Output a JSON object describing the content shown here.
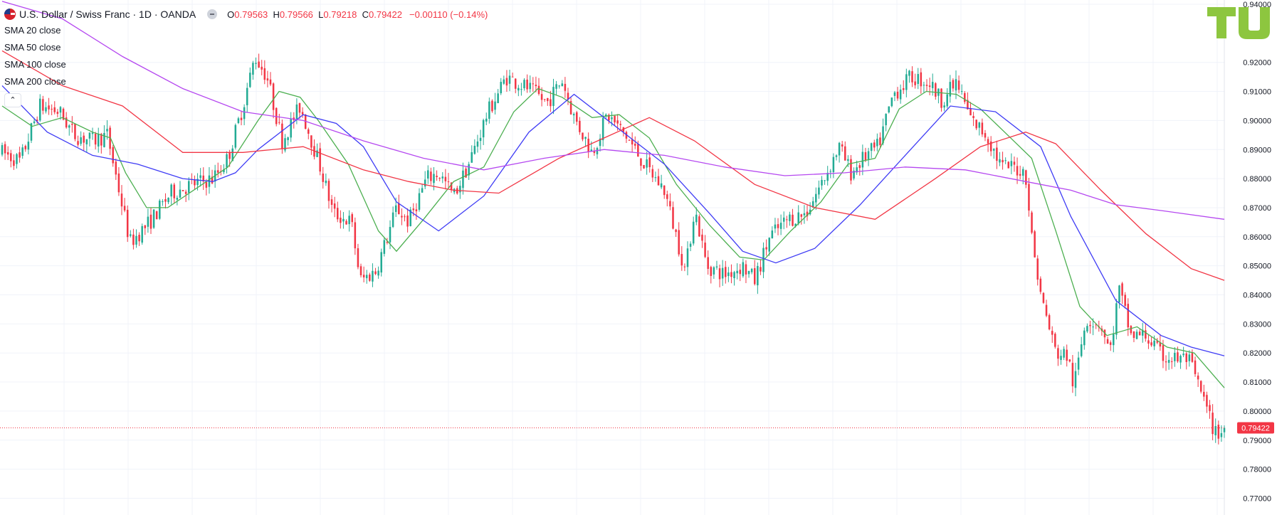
{
  "header": {
    "symbol": "U.S. Dollar / Swiss Franc · 1D · OANDA",
    "o_label": "O",
    "o_value": "0.79563",
    "h_label": "H",
    "h_value": "0.79566",
    "l_label": "L",
    "l_value": "0.79218",
    "c_label": "C",
    "c_value": "0.79422",
    "change": "−0.00110 (−0.14%)"
  },
  "indicators": [
    "SMA 20 close",
    "SMA 50 close",
    "SMA 100 close",
    "SMA 200 close"
  ],
  "collapse_icon": "chevron-up-icon",
  "logo": "TU",
  "colors": {
    "up": "#22ab94",
    "down": "#f23645",
    "sma20": "#4caf50",
    "sma50": "#3f3cf5",
    "sma100": "#f23645",
    "sma200": "#b548f0",
    "price_line": "#f23645",
    "grid": "#f0f3fa",
    "logo": "#8dc63f"
  },
  "chart_data": {
    "type": "line",
    "title": "U.S. Dollar / Swiss Franc · 1D · OANDA",
    "ylim": [
      0.765,
      0.942
    ],
    "y_ticks": [
      "0.94000",
      "0.92000",
      "0.91000",
      "0.90000",
      "0.89000",
      "0.88000",
      "0.87000",
      "0.86000",
      "0.85000",
      "0.84000",
      "0.83000",
      "0.82000",
      "0.81000",
      "0.80000",
      "0.79000",
      "0.78000",
      "0.77000"
    ],
    "last_price": "0.79422",
    "grid": true,
    "legend": "top-left",
    "bars": 420,
    "price_path": [
      [
        0,
        0.889
      ],
      [
        12,
        0.886
      ],
      [
        25,
        0.905
      ],
      [
        38,
        0.903
      ],
      [
        48,
        0.895
      ],
      [
        60,
        0.893
      ],
      [
        70,
        0.895
      ],
      [
        76,
        0.88
      ],
      [
        85,
        0.858
      ],
      [
        98,
        0.865
      ],
      [
        112,
        0.875
      ],
      [
        126,
        0.878
      ],
      [
        140,
        0.88
      ],
      [
        150,
        0.887
      ],
      [
        160,
        0.905
      ],
      [
        168,
        0.922
      ],
      [
        176,
        0.915
      ],
      [
        186,
        0.893
      ],
      [
        198,
        0.905
      ],
      [
        212,
        0.883
      ],
      [
        220,
        0.868
      ],
      [
        232,
        0.865
      ],
      [
        238,
        0.845
      ],
      [
        248,
        0.848
      ],
      [
        256,
        0.86
      ],
      [
        262,
        0.87
      ],
      [
        270,
        0.865
      ],
      [
        282,
        0.88
      ],
      [
        290,
        0.882
      ],
      [
        300,
        0.874
      ],
      [
        310,
        0.885
      ],
      [
        322,
        0.902
      ],
      [
        335,
        0.915
      ],
      [
        350,
        0.911
      ],
      [
        362,
        0.906
      ],
      [
        372,
        0.914
      ],
      [
        380,
        0.901
      ],
      [
        392,
        0.889
      ],
      [
        402,
        0.902
      ],
      [
        414,
        0.895
      ],
      [
        428,
        0.884
      ],
      [
        440,
        0.876
      ],
      [
        448,
        0.86
      ],
      [
        454,
        0.848
      ],
      [
        460,
        0.87
      ],
      [
        468,
        0.85
      ],
      [
        480,
        0.847
      ],
      [
        492,
        0.85
      ],
      [
        500,
        0.845
      ],
      [
        510,
        0.86
      ],
      [
        522,
        0.866
      ],
      [
        534,
        0.868
      ],
      [
        546,
        0.88
      ],
      [
        556,
        0.891
      ],
      [
        564,
        0.882
      ],
      [
        574,
        0.888
      ],
      [
        582,
        0.891
      ],
      [
        592,
        0.909
      ],
      [
        604,
        0.915
      ],
      [
        616,
        0.913
      ],
      [
        624,
        0.907
      ],
      [
        634,
        0.913
      ],
      [
        644,
        0.9
      ],
      [
        654,
        0.895
      ],
      [
        664,
        0.884
      ],
      [
        672,
        0.884
      ],
      [
        680,
        0.882
      ],
      [
        684,
        0.86
      ],
      [
        690,
        0.84
      ],
      [
        700,
        0.82
      ],
      [
        708,
        0.819
      ],
      [
        712,
        0.808
      ],
      [
        720,
        0.832
      ],
      [
        730,
        0.83
      ],
      [
        736,
        0.82
      ],
      [
        742,
        0.842
      ],
      [
        750,
        0.826
      ],
      [
        760,
        0.826
      ],
      [
        770,
        0.819
      ],
      [
        778,
        0.818
      ],
      [
        788,
        0.818
      ],
      [
        796,
        0.807
      ],
      [
        806,
        0.792
      ],
      [
        812,
        0.794
      ]
    ],
    "series": [
      {
        "name": "SMA 20 close",
        "points": [
          [
            0,
            0.905
          ],
          [
            20,
            0.898
          ],
          [
            40,
            0.901
          ],
          [
            60,
            0.896
          ],
          [
            72,
            0.894
          ],
          [
            82,
            0.882
          ],
          [
            96,
            0.87
          ],
          [
            110,
            0.87
          ],
          [
            130,
            0.877
          ],
          [
            150,
            0.884
          ],
          [
            170,
            0.9
          ],
          [
            184,
            0.91
          ],
          [
            198,
            0.908
          ],
          [
            210,
            0.9
          ],
          [
            230,
            0.885
          ],
          [
            250,
            0.862
          ],
          [
            262,
            0.855
          ],
          [
            280,
            0.866
          ],
          [
            300,
            0.879
          ],
          [
            320,
            0.884
          ],
          [
            340,
            0.903
          ],
          [
            356,
            0.911
          ],
          [
            372,
            0.908
          ],
          [
            392,
            0.901
          ],
          [
            410,
            0.902
          ],
          [
            430,
            0.894
          ],
          [
            448,
            0.878
          ],
          [
            470,
            0.864
          ],
          [
            490,
            0.853
          ],
          [
            506,
            0.852
          ],
          [
            524,
            0.862
          ],
          [
            544,
            0.872
          ],
          [
            562,
            0.885
          ],
          [
            580,
            0.887
          ],
          [
            596,
            0.904
          ],
          [
            614,
            0.91
          ],
          [
            634,
            0.909
          ],
          [
            650,
            0.904
          ],
          [
            666,
            0.896
          ],
          [
            684,
            0.887
          ],
          [
            700,
            0.862
          ],
          [
            716,
            0.836
          ],
          [
            734,
            0.826
          ],
          [
            754,
            0.829
          ],
          [
            774,
            0.822
          ],
          [
            792,
            0.82
          ],
          [
            812,
            0.808
          ]
        ]
      },
      {
        "name": "SMA 50 close",
        "points": [
          [
            0,
            0.912
          ],
          [
            30,
            0.896
          ],
          [
            60,
            0.888
          ],
          [
            90,
            0.885
          ],
          [
            120,
            0.88
          ],
          [
            140,
            0.879
          ],
          [
            155,
            0.882
          ],
          [
            170,
            0.89
          ],
          [
            200,
            0.902
          ],
          [
            222,
            0.899
          ],
          [
            240,
            0.891
          ],
          [
            262,
            0.872
          ],
          [
            290,
            0.862
          ],
          [
            320,
            0.874
          ],
          [
            350,
            0.896
          ],
          [
            380,
            0.909
          ],
          [
            410,
            0.897
          ],
          [
            440,
            0.885
          ],
          [
            470,
            0.868
          ],
          [
            492,
            0.855
          ],
          [
            514,
            0.851
          ],
          [
            540,
            0.856
          ],
          [
            570,
            0.871
          ],
          [
            600,
            0.888
          ],
          [
            630,
            0.905
          ],
          [
            660,
            0.903
          ],
          [
            690,
            0.891
          ],
          [
            710,
            0.867
          ],
          [
            740,
            0.838
          ],
          [
            770,
            0.826
          ],
          [
            790,
            0.822
          ],
          [
            812,
            0.819
          ]
        ]
      },
      {
        "name": "SMA 100 close",
        "points": [
          [
            0,
            0.924
          ],
          [
            40,
            0.912
          ],
          [
            80,
            0.905
          ],
          [
            120,
            0.889
          ],
          [
            160,
            0.889
          ],
          [
            200,
            0.891
          ],
          [
            240,
            0.883
          ],
          [
            270,
            0.879
          ],
          [
            300,
            0.876
          ],
          [
            330,
            0.875
          ],
          [
            370,
            0.887
          ],
          [
            400,
            0.894
          ],
          [
            430,
            0.901
          ],
          [
            460,
            0.893
          ],
          [
            500,
            0.878
          ],
          [
            540,
            0.87
          ],
          [
            580,
            0.866
          ],
          [
            620,
            0.88
          ],
          [
            650,
            0.891
          ],
          [
            680,
            0.896
          ],
          [
            700,
            0.892
          ],
          [
            730,
            0.876
          ],
          [
            760,
            0.861
          ],
          [
            790,
            0.849
          ],
          [
            812,
            0.845
          ]
        ]
      },
      {
        "name": "SMA 200 close",
        "points": [
          [
            0,
            0.941
          ],
          [
            40,
            0.935
          ],
          [
            80,
            0.922
          ],
          [
            120,
            0.911
          ],
          [
            160,
            0.903
          ],
          [
            200,
            0.9
          ],
          [
            240,
            0.893
          ],
          [
            280,
            0.887
          ],
          [
            320,
            0.883
          ],
          [
            360,
            0.887
          ],
          [
            400,
            0.89
          ],
          [
            440,
            0.888
          ],
          [
            480,
            0.884
          ],
          [
            520,
            0.881
          ],
          [
            560,
            0.882
          ],
          [
            600,
            0.884
          ],
          [
            640,
            0.883
          ],
          [
            680,
            0.879
          ],
          [
            710,
            0.876
          ],
          [
            740,
            0.871
          ],
          [
            770,
            0.869
          ],
          [
            812,
            0.866
          ]
        ]
      }
    ]
  }
}
